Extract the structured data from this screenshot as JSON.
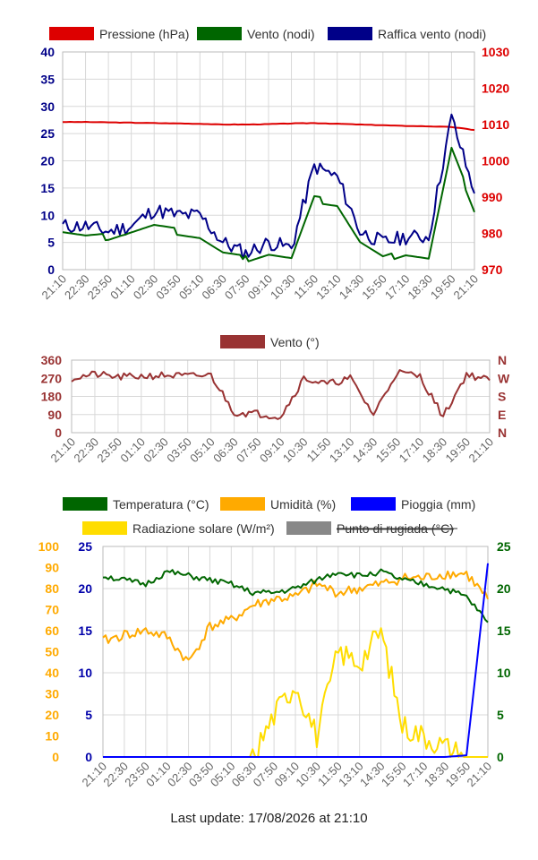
{
  "footer": {
    "last_update": "Last update: 17/08/2026 at 21:10"
  },
  "colors": {
    "pressure": "#dd0000",
    "wind": "#006600",
    "gust": "#000088",
    "direction": "#993333",
    "temperature": "#006600",
    "humidity": "#ffaa00",
    "rain": "#0000ff",
    "solar": "#ffdd00",
    "dewpoint": "#888888"
  },
  "chart_data": [
    {
      "type": "line",
      "legend_position": "top",
      "grid": true,
      "x_labels": [
        "21:10",
        "22:30",
        "23:50",
        "01:10",
        "02:30",
        "03:50",
        "05:10",
        "06:30",
        "07:50",
        "09:10",
        "10:30",
        "11:50",
        "13:10",
        "14:30",
        "15:50",
        "17:10",
        "18:30",
        "19:50",
        "21:10"
      ],
      "left_axis": {
        "ticks": [
          "0",
          "5",
          "10",
          "15",
          "20",
          "25",
          "30",
          "35",
          "40"
        ],
        "ylim": [
          0,
          40
        ]
      },
      "right_axis": {
        "ticks": [
          "970",
          "980",
          "990",
          "1000",
          "1010",
          "1020",
          "1030"
        ],
        "ylim": [
          970,
          1030
        ]
      },
      "series": [
        {
          "name": "Pressione (hPa)",
          "color": "#dd0000",
          "axis": "right",
          "values": [
            1010.7,
            1010.7,
            1010.6,
            1010.5,
            1010.4,
            1010.3,
            1010.2,
            1010.0,
            1010.0,
            1010.1,
            1010.3,
            1010.4,
            1010.2,
            1010.0,
            1009.8,
            1009.6,
            1009.5,
            1009.3,
            1008.5
          ]
        },
        {
          "name": "Vento (nodi)",
          "color": "#006600",
          "axis": "left",
          "values": [
            7,
            6,
            6,
            7,
            8,
            7,
            6,
            3,
            2,
            3,
            2,
            13,
            12,
            5,
            2,
            3,
            2,
            22,
            11
          ]
        },
        {
          "name": "Raffica vento (nodi)",
          "color": "#000088",
          "axis": "left",
          "values": [
            8,
            8,
            7,
            8,
            11,
            10,
            10,
            5,
            3,
            5,
            4,
            19,
            17,
            7,
            5,
            6,
            6,
            28,
            14
          ]
        }
      ]
    },
    {
      "type": "line",
      "legend_position": "top",
      "grid": true,
      "x_labels": [
        "21:10",
        "22:30",
        "23:50",
        "01:10",
        "02:30",
        "03:50",
        "05:10",
        "06:30",
        "07:50",
        "09:10",
        "10:30",
        "11:50",
        "13:10",
        "14:30",
        "15:50",
        "17:10",
        "18:30",
        "19:50",
        "21:10"
      ],
      "left_axis": {
        "ticks": [
          "0",
          "90",
          "180",
          "270",
          "360"
        ],
        "ylim": [
          0,
          360
        ]
      },
      "right_axis": {
        "ticks": [
          "N",
          "E",
          "S",
          "W",
          "N"
        ]
      },
      "series": [
        {
          "name": "Vento (°)",
          "color": "#993333",
          "values": [
            270,
            290,
            275,
            280,
            285,
            280,
            285,
            100,
            95,
            80,
            270,
            240,
            270,
            90,
            300,
            280,
            80,
            290,
            260
          ]
        }
      ]
    },
    {
      "type": "line",
      "legend_position": "top",
      "grid": true,
      "x_labels": [
        "21:10",
        "22:30",
        "23:50",
        "01:10",
        "02:30",
        "03:50",
        "05:10",
        "06:30",
        "07:50",
        "09:10",
        "10:30",
        "11:50",
        "13:10",
        "14:30",
        "15:50",
        "17:10",
        "18:30",
        "19:50",
        "21:10"
      ],
      "axis_far_left": {
        "ticks": [
          "0",
          "10",
          "20",
          "30",
          "40",
          "50",
          "60",
          "70",
          "80",
          "90",
          "100"
        ],
        "ylim": [
          0,
          100
        ]
      },
      "axis_left": {
        "ticks": [
          "0",
          "5",
          "10",
          "15",
          "20",
          "25"
        ],
        "ylim": [
          0,
          25
        ]
      },
      "axis_right": {
        "ticks": [
          "0",
          "5",
          "10",
          "15",
          "20",
          "25"
        ],
        "ylim": [
          0,
          25
        ]
      },
      "series": [
        {
          "name": "Temperatura (°C)",
          "color": "#006600",
          "axis": "right",
          "values": [
            21.5,
            21,
            20.5,
            22,
            21.5,
            21,
            20.5,
            19.5,
            19.5,
            20,
            21,
            22,
            21.5,
            22,
            21,
            20.5,
            20,
            19,
            16
          ]
        },
        {
          "name": "Umidità (%)",
          "color": "#ffaa00",
          "axis": "far_left",
          "values": [
            55,
            58,
            60,
            57,
            45,
            62,
            65,
            72,
            75,
            76,
            82,
            78,
            80,
            82,
            85,
            85,
            87,
            87,
            75
          ]
        },
        {
          "name": "Pioggia (mm)",
          "color": "#0000ff",
          "axis": "left",
          "values": [
            0,
            0,
            0,
            0,
            0,
            0,
            0,
            0,
            0,
            0,
            0,
            0,
            0,
            0,
            0,
            0,
            0,
            0.2,
            23
          ]
        },
        {
          "name": "Radiazione solare (W/m²)",
          "color": "#ffdd00",
          "axis": "far_left",
          "values": [
            0,
            0,
            0,
            0,
            0,
            0,
            0,
            0,
            20,
            35,
            10,
            50,
            45,
            60,
            15,
            10,
            5,
            0,
            0
          ]
        },
        {
          "name": "Punto di rugiada (°C)",
          "color": "#888888",
          "axis": "right",
          "hidden": true,
          "values": []
        }
      ]
    }
  ]
}
